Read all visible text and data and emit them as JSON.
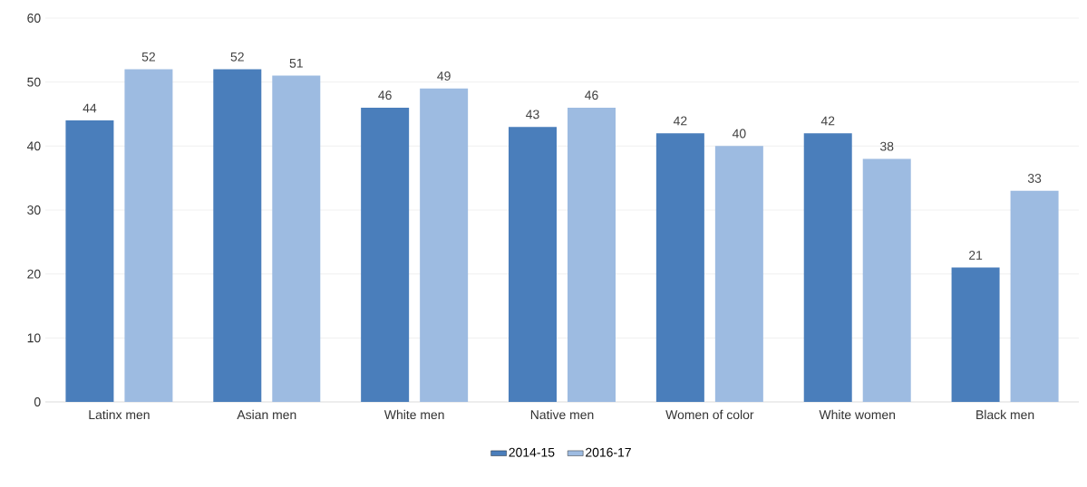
{
  "chart_data": {
    "type": "bar",
    "categories": [
      "Latinx men",
      "Asian men",
      "White men",
      "Native men",
      "Women of color",
      "White women",
      "Black men"
    ],
    "series": [
      {
        "name": "2014-15",
        "color": "#4a7ebb",
        "values": [
          44,
          52,
          46,
          43,
          42,
          42,
          21
        ]
      },
      {
        "name": "2016-17",
        "color": "#9dbbe1",
        "values": [
          52,
          51,
          49,
          46,
          40,
          38,
          33
        ]
      }
    ],
    "ylim": [
      0,
      60
    ],
    "yticks": [
      0,
      10,
      20,
      30,
      40,
      50,
      60
    ],
    "grid": "y",
    "legend": "bottom",
    "data_labels": true
  }
}
